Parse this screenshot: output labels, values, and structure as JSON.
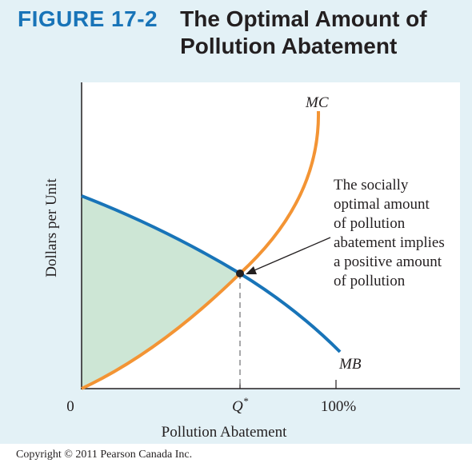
{
  "figure": {
    "number": "FIGURE 17-2",
    "title": "The Optimal Amount of Pollution Abatement"
  },
  "axes": {
    "ylabel": "Dollars per Unit",
    "xlabel": "Pollution Abatement",
    "origin_label": "0",
    "qstar_label": "Q",
    "qstar_sup": "*",
    "max_label": "100%"
  },
  "curves": {
    "mc_label": "MC",
    "mb_label": "MB"
  },
  "annotation": {
    "lines": [
      "The socially",
      "optimal amount",
      "of pollution",
      "abatement implies",
      "a positive amount",
      "of pollution"
    ]
  },
  "colors": {
    "mc": "#f39434",
    "mb": "#1874b8",
    "shade": "#cde6d5",
    "panel": "#e3f1f6"
  },
  "copyright": "Copyright © 2011 Pearson Canada Inc."
}
